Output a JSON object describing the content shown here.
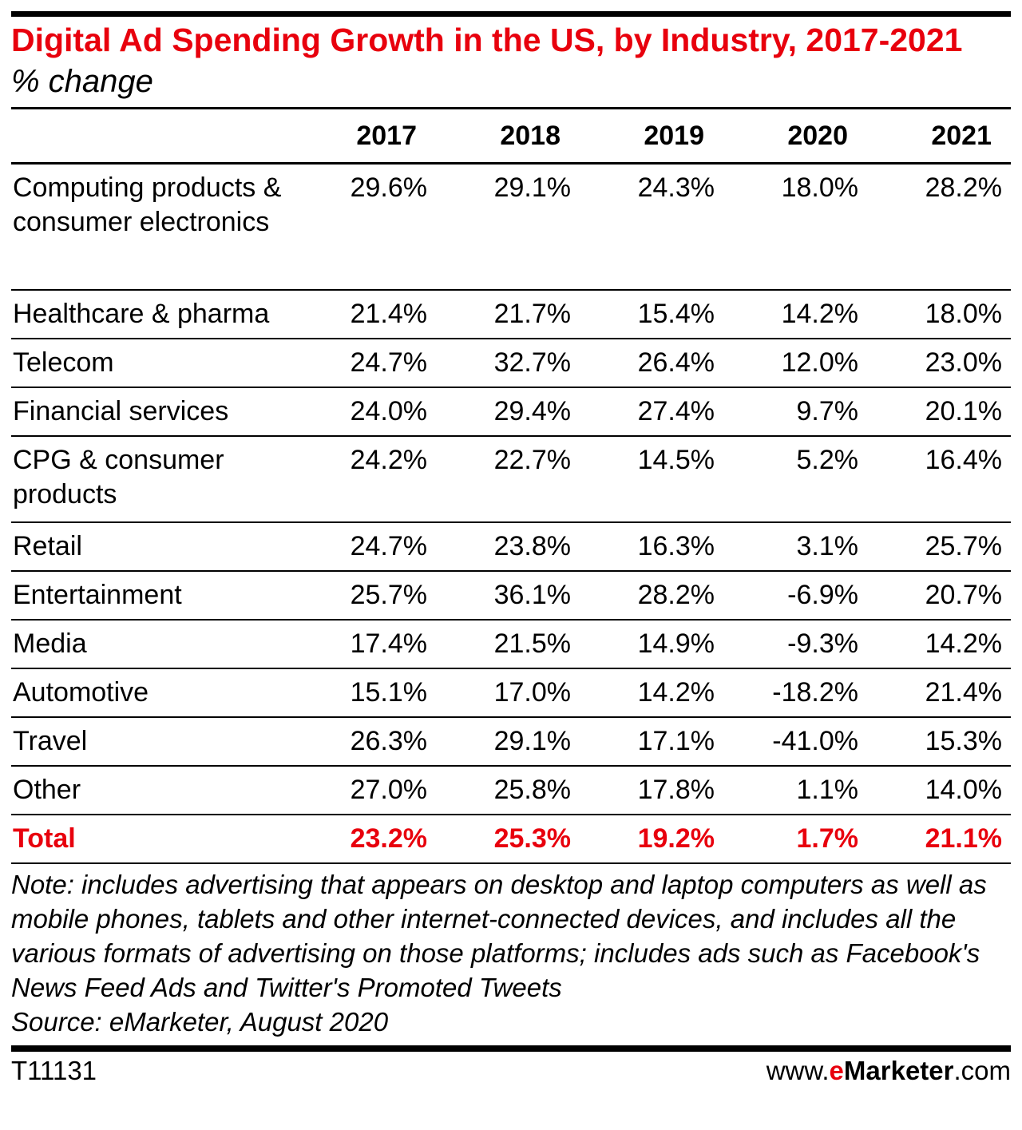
{
  "title": "Digital Ad Spending Growth in the US, by Industry, 2017-2021",
  "subtitle": "% change",
  "chart_data": {
    "type": "table",
    "columns": [
      "2017",
      "2018",
      "2019",
      "2020",
      "2021"
    ],
    "rows": [
      {
        "label": "Computing products & consumer electronics",
        "values": [
          "29.6%",
          "29.1%",
          "24.3%",
          "18.0%",
          "28.2%"
        ]
      },
      {
        "label": "Healthcare & pharma",
        "values": [
          "21.4%",
          "21.7%",
          "15.4%",
          "14.2%",
          "18.0%"
        ]
      },
      {
        "label": "Telecom",
        "values": [
          "24.7%",
          "32.7%",
          "26.4%",
          "12.0%",
          "23.0%"
        ]
      },
      {
        "label": "Financial services",
        "values": [
          "24.0%",
          "29.4%",
          "27.4%",
          "9.7%",
          "20.1%"
        ]
      },
      {
        "label": "CPG & consumer products",
        "values": [
          "24.2%",
          "22.7%",
          "14.5%",
          "5.2%",
          "16.4%"
        ]
      },
      {
        "label": "Retail",
        "values": [
          "24.7%",
          "23.8%",
          "16.3%",
          "3.1%",
          "25.7%"
        ]
      },
      {
        "label": "Entertainment",
        "values": [
          "25.7%",
          "36.1%",
          "28.2%",
          "-6.9%",
          "20.7%"
        ]
      },
      {
        "label": "Media",
        "values": [
          "17.4%",
          "21.5%",
          "14.9%",
          "-9.3%",
          "14.2%"
        ]
      },
      {
        "label": "Automotive",
        "values": [
          "15.1%",
          "17.0%",
          "14.2%",
          "-18.2%",
          "21.4%"
        ]
      },
      {
        "label": "Travel",
        "values": [
          "26.3%",
          "29.1%",
          "17.1%",
          "-41.0%",
          "15.3%"
        ]
      },
      {
        "label": "Other",
        "values": [
          "27.0%",
          "25.8%",
          "17.8%",
          "1.1%",
          "14.0%"
        ]
      }
    ],
    "total": {
      "label": "Total",
      "values": [
        "23.2%",
        "25.3%",
        "19.2%",
        "1.7%",
        "21.1%"
      ]
    }
  },
  "note": "Note: includes advertising that appears on desktop and laptop computers as well as mobile phones, tablets and other internet-connected devices, and includes all the various formats of advertising on those platforms; includes ads such as Facebook's News Feed Ads and Twitter's Promoted Tweets",
  "source": "Source: eMarketer, August 2020",
  "chart_id": "T11131",
  "brand": {
    "prefix": "www.",
    "e": "e",
    "name": "Marketer",
    "suffix": ".com"
  },
  "colors": {
    "accent": "#e8000d"
  }
}
